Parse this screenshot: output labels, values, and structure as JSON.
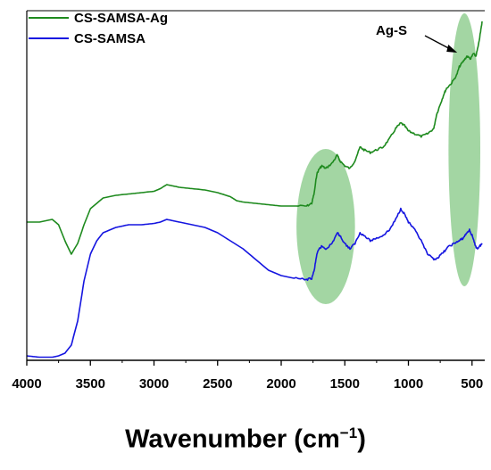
{
  "chart_data": {
    "type": "line",
    "xlabel": {
      "main": "Wavenumber (cm",
      "sup": "−1",
      "close": ")"
    },
    "ylabel": "",
    "xlim": [
      4000,
      400
    ],
    "x_reversed": true,
    "y_ticks_visible": false,
    "grid": false,
    "legend_placement": "top-left",
    "x_ticks": [
      {
        "value": 4000,
        "label": "4000"
      },
      {
        "value": 3500,
        "label": "3500"
      },
      {
        "value": 3000,
        "label": "3000"
      },
      {
        "value": 2500,
        "label": "2500"
      },
      {
        "value": 2000,
        "label": "2000"
      },
      {
        "value": 1500,
        "label": "1500"
      },
      {
        "value": 1000,
        "label": "1000"
      },
      {
        "value": 500,
        "label": "500"
      }
    ],
    "series": [
      {
        "name": "CS-SAMSA-Ag",
        "color": "#1e8a1e",
        "points": [
          [
            4000,
            0.52
          ],
          [
            3900,
            0.52
          ],
          [
            3800,
            0.53
          ],
          [
            3750,
            0.51
          ],
          [
            3700,
            0.45
          ],
          [
            3650,
            0.4
          ],
          [
            3600,
            0.44
          ],
          [
            3550,
            0.51
          ],
          [
            3500,
            0.57
          ],
          [
            3400,
            0.61
          ],
          [
            3300,
            0.62
          ],
          [
            3200,
            0.625
          ],
          [
            3100,
            0.63
          ],
          [
            3000,
            0.635
          ],
          [
            2950,
            0.645
          ],
          [
            2900,
            0.66
          ],
          [
            2850,
            0.655
          ],
          [
            2800,
            0.65
          ],
          [
            2700,
            0.645
          ],
          [
            2600,
            0.64
          ],
          [
            2500,
            0.63
          ],
          [
            2400,
            0.615
          ],
          [
            2350,
            0.6
          ],
          [
            2300,
            0.595
          ],
          [
            2200,
            0.59
          ],
          [
            2100,
            0.585
          ],
          [
            2000,
            0.58
          ],
          [
            1900,
            0.58
          ],
          [
            1800,
            0.58
          ],
          [
            1760,
            0.59
          ],
          [
            1740,
            0.63
          ],
          [
            1720,
            0.7
          ],
          [
            1700,
            0.72
          ],
          [
            1680,
            0.73
          ],
          [
            1650,
            0.72
          ],
          [
            1600,
            0.74
          ],
          [
            1560,
            0.77
          ],
          [
            1540,
            0.75
          ],
          [
            1500,
            0.73
          ],
          [
            1460,
            0.72
          ],
          [
            1420,
            0.75
          ],
          [
            1380,
            0.8
          ],
          [
            1350,
            0.79
          ],
          [
            1300,
            0.78
          ],
          [
            1250,
            0.79
          ],
          [
            1200,
            0.8
          ],
          [
            1150,
            0.83
          ],
          [
            1100,
            0.87
          ],
          [
            1060,
            0.89
          ],
          [
            1030,
            0.88
          ],
          [
            1000,
            0.86
          ],
          [
            950,
            0.85
          ],
          [
            900,
            0.84
          ],
          [
            850,
            0.85
          ],
          [
            800,
            0.87
          ],
          [
            780,
            0.92
          ],
          [
            750,
            0.96
          ],
          [
            720,
            1.0
          ],
          [
            700,
            1.02
          ],
          [
            660,
            1.04
          ],
          [
            620,
            1.07
          ],
          [
            600,
            1.1
          ],
          [
            570,
            1.12
          ],
          [
            540,
            1.14
          ],
          [
            510,
            1.13
          ],
          [
            490,
            1.15
          ],
          [
            470,
            1.14
          ],
          [
            450,
            1.18
          ],
          [
            430,
            1.24
          ],
          [
            420,
            1.27
          ]
        ]
      },
      {
        "name": "CS-SAMSA",
        "color": "#1515e0",
        "points": [
          [
            4000,
            0.02
          ],
          [
            3900,
            0.015
          ],
          [
            3800,
            0.015
          ],
          [
            3750,
            0.02
          ],
          [
            3700,
            0.03
          ],
          [
            3650,
            0.06
          ],
          [
            3600,
            0.15
          ],
          [
            3550,
            0.3
          ],
          [
            3500,
            0.4
          ],
          [
            3450,
            0.45
          ],
          [
            3400,
            0.48
          ],
          [
            3350,
            0.49
          ],
          [
            3300,
            0.5
          ],
          [
            3250,
            0.505
          ],
          [
            3200,
            0.51
          ],
          [
            3100,
            0.51
          ],
          [
            3000,
            0.515
          ],
          [
            2950,
            0.52
          ],
          [
            2900,
            0.53
          ],
          [
            2850,
            0.525
          ],
          [
            2800,
            0.52
          ],
          [
            2700,
            0.51
          ],
          [
            2600,
            0.5
          ],
          [
            2500,
            0.48
          ],
          [
            2400,
            0.45
          ],
          [
            2300,
            0.42
          ],
          [
            2200,
            0.38
          ],
          [
            2100,
            0.34
          ],
          [
            2000,
            0.32
          ],
          [
            1900,
            0.31
          ],
          [
            1800,
            0.305
          ],
          [
            1760,
            0.31
          ],
          [
            1740,
            0.34
          ],
          [
            1720,
            0.4
          ],
          [
            1700,
            0.42
          ],
          [
            1680,
            0.43
          ],
          [
            1650,
            0.42
          ],
          [
            1600,
            0.44
          ],
          [
            1560,
            0.48
          ],
          [
            1540,
            0.47
          ],
          [
            1500,
            0.44
          ],
          [
            1460,
            0.42
          ],
          [
            1420,
            0.44
          ],
          [
            1380,
            0.48
          ],
          [
            1350,
            0.47
          ],
          [
            1300,
            0.45
          ],
          [
            1250,
            0.46
          ],
          [
            1200,
            0.47
          ],
          [
            1150,
            0.49
          ],
          [
            1100,
            0.53
          ],
          [
            1060,
            0.57
          ],
          [
            1030,
            0.55
          ],
          [
            1000,
            0.52
          ],
          [
            950,
            0.49
          ],
          [
            900,
            0.45
          ],
          [
            850,
            0.4
          ],
          [
            800,
            0.38
          ],
          [
            760,
            0.39
          ],
          [
            720,
            0.41
          ],
          [
            680,
            0.43
          ],
          [
            640,
            0.44
          ],
          [
            600,
            0.45
          ],
          [
            570,
            0.46
          ],
          [
            540,
            0.48
          ],
          [
            520,
            0.49
          ],
          [
            500,
            0.47
          ],
          [
            480,
            0.44
          ],
          [
            460,
            0.42
          ],
          [
            440,
            0.43
          ],
          [
            420,
            0.44
          ]
        ]
      }
    ],
    "highlight_regions": [
      {
        "x_center": 1650,
        "x_halfwidth": 230,
        "color": "#93cf93"
      },
      {
        "x_center": 560,
        "x_halfwidth": 125,
        "color": "#93cf93"
      }
    ],
    "annotations": [
      {
        "text": "Ag-S",
        "arrow_to_x": 560
      }
    ]
  }
}
